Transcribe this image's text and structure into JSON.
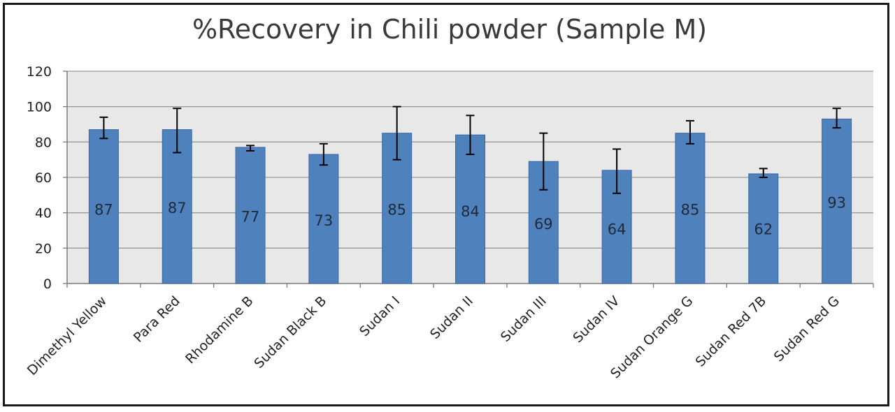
{
  "chart_data": {
    "type": "bar",
    "title": "%Recovery in Chili powder (Sample M)",
    "xlabel": "",
    "ylabel": "",
    "ylim": [
      0,
      120
    ],
    "yticks": [
      0,
      20,
      40,
      60,
      80,
      100,
      120
    ],
    "grid": true,
    "legend": "none",
    "categories": [
      "Dimethyl Yellow",
      "Para Red",
      "Rhodamine B",
      "Sudan Black B",
      "Sudan I",
      "Sudan II",
      "Sudan III",
      "Sudan IV",
      "Sudan Orange G",
      "Sudan Red 7B",
      "Sudan Red G"
    ],
    "values": [
      87,
      87,
      77,
      73,
      85,
      84,
      69,
      64,
      85,
      62,
      93
    ],
    "error_low": [
      82,
      74,
      75,
      67,
      70,
      73,
      53,
      51,
      79,
      60,
      88
    ],
    "error_high": [
      94,
      99,
      78,
      79,
      100,
      95,
      85,
      76,
      92,
      65,
      99
    ],
    "data_labels": [
      "87",
      "87",
      "77",
      "73",
      "85",
      "84",
      "69",
      "64",
      "85",
      "62",
      "93"
    ],
    "data_label_values": [
      42,
      43,
      38,
      36,
      42,
      41,
      34,
      31,
      42,
      31,
      46
    ],
    "colors": {
      "bar": "#4f81bd",
      "bar_edge": "#3a6aa5",
      "plot_bg": "#e8e8e8",
      "grid": "#9a9a9a",
      "error_bar": "#000000"
    }
  }
}
